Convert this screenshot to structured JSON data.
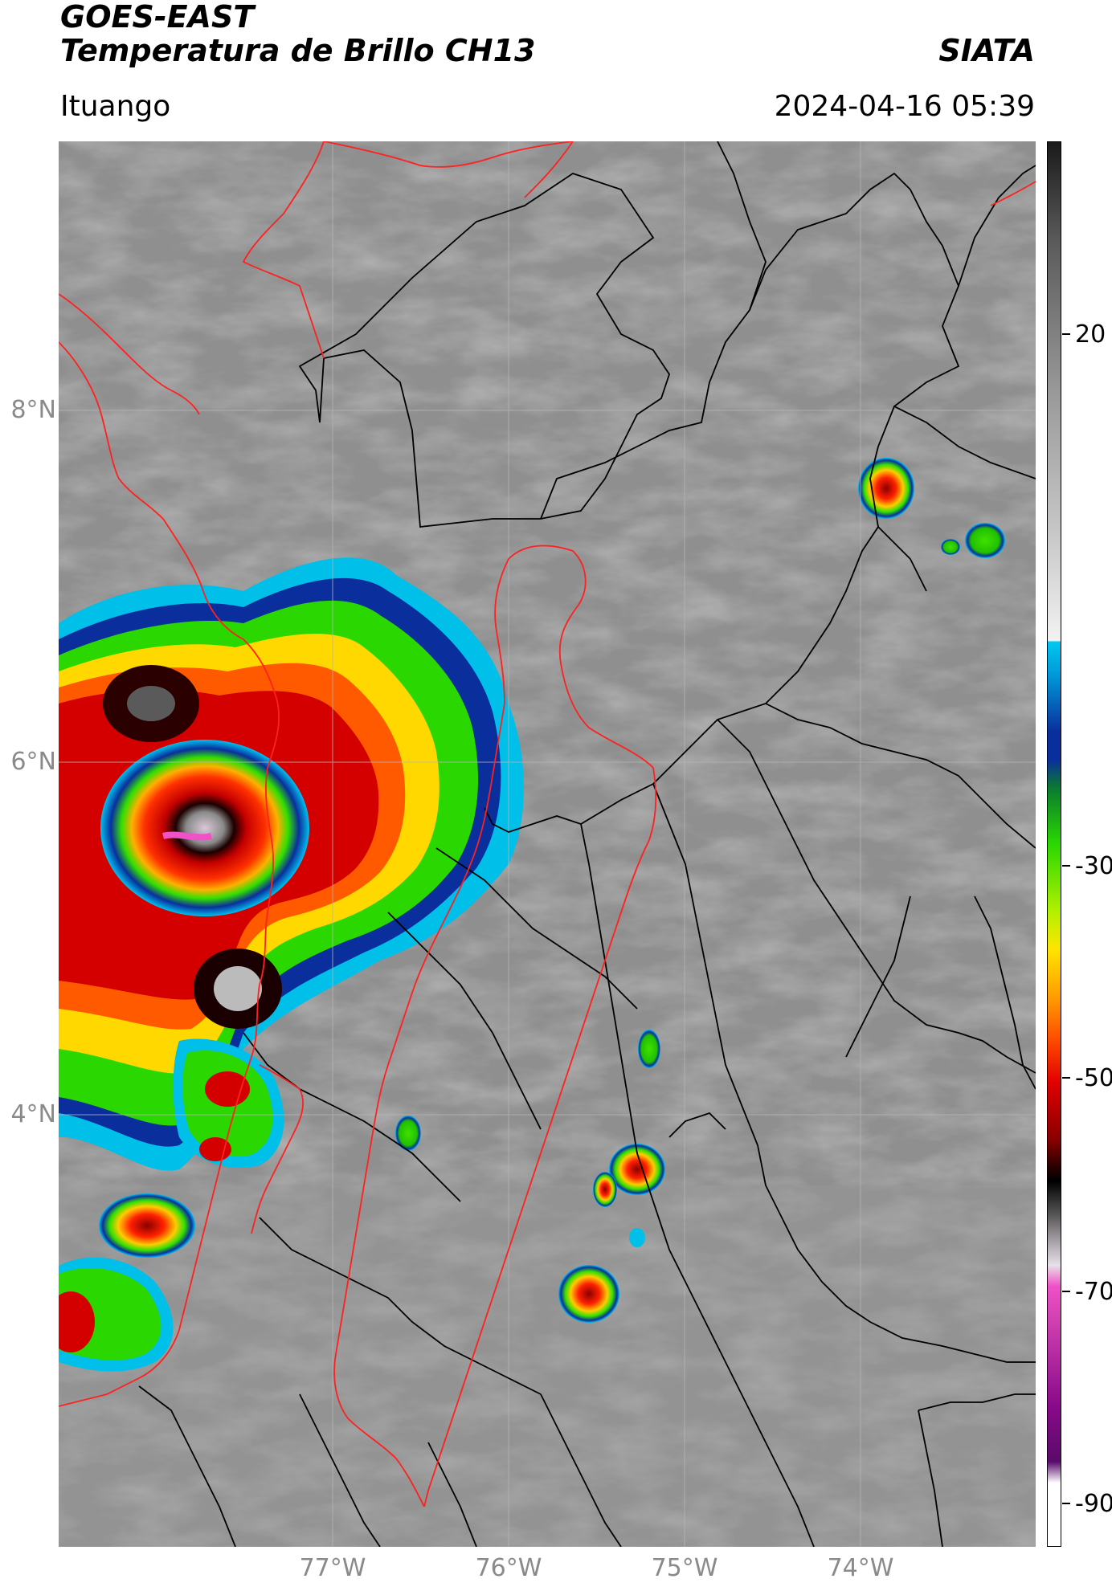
{
  "header": {
    "title": "GOES-EAST",
    "subtitle": "Temperatura de Brillo CH13",
    "organization": "SIATA",
    "location": "Ituango",
    "timestamp": "2024-04-16 05:39"
  },
  "map": {
    "lat_labels": [
      "8°N",
      "6°N",
      "4°N"
    ],
    "lon_labels": [
      "77°W",
      "76°W",
      "75°W",
      "74°W"
    ],
    "border_colors": {
      "national": "#ff2020",
      "departmental": "#000000",
      "grid": "#b5b5b5"
    }
  },
  "colorbar": {
    "labels": [
      "20",
      "-30",
      "-50",
      "-70",
      "-90"
    ],
    "units_hint": "°C",
    "colors": {
      "warm_gray_top": "#1a1a1a",
      "mid_gray": "#9a9a9a",
      "light": "#f2f2f2",
      "cyan": "#00c8f0",
      "blue": "#0a2f9c",
      "green": "#2ad800",
      "yellow": "#ffe400",
      "orange": "#ff7a00",
      "red": "#e00000",
      "dark_red": "#5a0000",
      "black": "#000000",
      "pink": "#f050c8",
      "purple": "#8a0a8a",
      "white": "#ffffff"
    }
  }
}
